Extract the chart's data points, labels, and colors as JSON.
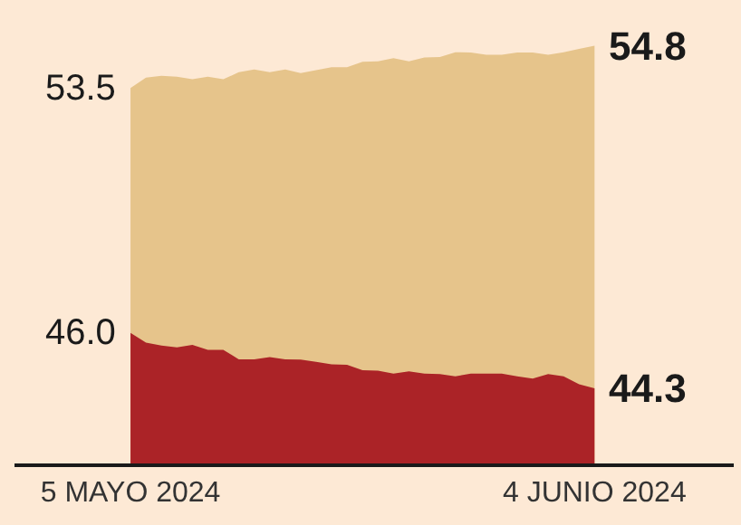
{
  "chart_data": {
    "type": "area",
    "x": [
      "2024-05-05",
      "2024-05-06",
      "2024-05-07",
      "2024-05-08",
      "2024-05-09",
      "2024-05-10",
      "2024-05-11",
      "2024-05-12",
      "2024-05-13",
      "2024-05-14",
      "2024-05-15",
      "2024-05-16",
      "2024-05-17",
      "2024-05-18",
      "2024-05-19",
      "2024-05-20",
      "2024-05-21",
      "2024-05-22",
      "2024-05-23",
      "2024-05-24",
      "2024-05-25",
      "2024-05-26",
      "2024-05-27",
      "2024-05-28",
      "2024-05-29",
      "2024-05-30",
      "2024-05-31",
      "2024-06-01",
      "2024-06-02",
      "2024-06-03",
      "2024-06-04"
    ],
    "series": [
      {
        "color": "#e6c48b",
        "values": [
          53.5,
          53.82,
          53.88,
          53.85,
          53.77,
          53.85,
          53.77,
          53.99,
          54.07,
          53.99,
          54.07,
          53.96,
          54.05,
          54.14,
          54.14,
          54.31,
          54.32,
          54.42,
          54.32,
          54.44,
          54.45,
          54.6,
          54.59,
          54.52,
          54.52,
          54.59,
          54.59,
          54.52,
          54.6,
          54.7,
          54.8
        ],
        "value_labels": [
          "53.5",
          null,
          null,
          null,
          null,
          null,
          null,
          null,
          null,
          null,
          null,
          null,
          null,
          null,
          null,
          null,
          null,
          null,
          null,
          null,
          null,
          null,
          null,
          null,
          null,
          null,
          null,
          null,
          null,
          null,
          "54.8"
        ]
      },
      {
        "color": "#ab2327",
        "values": [
          46.0,
          45.7,
          45.61,
          45.56,
          45.63,
          45.48,
          45.48,
          45.19,
          45.19,
          45.26,
          45.19,
          45.18,
          45.11,
          45.04,
          45.02,
          44.86,
          44.84,
          44.75,
          44.82,
          44.75,
          44.74,
          44.67,
          44.75,
          44.75,
          44.75,
          44.67,
          44.6,
          44.74,
          44.67,
          44.43,
          44.3
        ],
        "value_labels": [
          "46.0",
          null,
          null,
          null,
          null,
          null,
          null,
          null,
          null,
          null,
          null,
          null,
          null,
          null,
          null,
          null,
          null,
          null,
          null,
          null,
          null,
          null,
          null,
          null,
          null,
          null,
          null,
          null,
          null,
          null,
          "44.3"
        ]
      }
    ],
    "xlim": [
      "2024-04-27T12:00",
      "2024-06-13T00:00"
    ],
    "xticks": [
      {
        "value": "2024-05-05",
        "label": "5 MAYO 2024"
      },
      {
        "value": "2024-06-04",
        "label": "4 JUNIO 2024"
      }
    ],
    "ylim": [
      42.0,
      56.2
    ],
    "tick_labels": "x"
  }
}
